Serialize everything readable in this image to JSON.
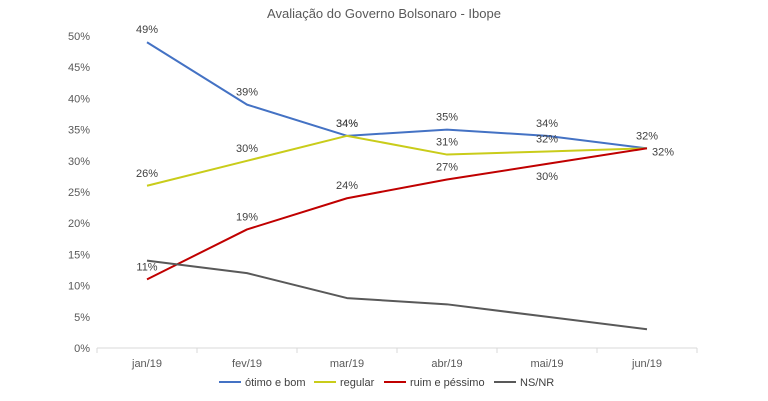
{
  "chart_data": {
    "type": "line",
    "title": "Avaliação do Governo Bolsonaro - Ibope",
    "categories": [
      "jan/19",
      "fev/19",
      "mar/19",
      "abr/19",
      "mai/19",
      "jun/19"
    ],
    "ylim": [
      0,
      50
    ],
    "yticks": [
      "0%",
      "5%",
      "10%",
      "15%",
      "20%",
      "25%",
      "30%",
      "35%",
      "40%",
      "45%",
      "50%"
    ],
    "grid": false,
    "legend_position": "bottom",
    "series": [
      {
        "name": "ótimo e bom",
        "color": "#4472c4",
        "values": [
          49,
          39,
          34,
          35,
          34,
          32
        ],
        "labels": [
          "49%",
          "39%",
          "34%",
          "35%",
          "34%",
          "32%"
        ]
      },
      {
        "name": "regular",
        "color": "#c9cc1a",
        "values": [
          26,
          30,
          34,
          31,
          31.5,
          32
        ],
        "labels": [
          "26%",
          "30%",
          "34%",
          "31%",
          "32%",
          "32%"
        ]
      },
      {
        "name": "ruim e péssimo",
        "color": "#c00000",
        "values": [
          11,
          19,
          24,
          27,
          29.5,
          32
        ],
        "labels": [
          "11%",
          "19%",
          "24%",
          "27%",
          "30%",
          "32%"
        ]
      },
      {
        "name": "NS/NR",
        "color": "#595959",
        "values": [
          14,
          12,
          8,
          7,
          5,
          3
        ],
        "labels": []
      }
    ]
  }
}
